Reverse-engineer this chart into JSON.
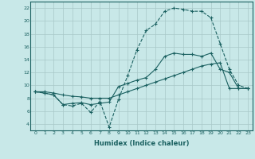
{
  "xlabel": "Humidex (Indice chaleur)",
  "xlim": [
    -0.5,
    23.5
  ],
  "ylim": [
    3,
    23
  ],
  "xticks": [
    0,
    1,
    2,
    3,
    4,
    5,
    6,
    7,
    8,
    9,
    10,
    11,
    12,
    13,
    14,
    15,
    16,
    17,
    18,
    19,
    20,
    21,
    22,
    23
  ],
  "yticks": [
    4,
    6,
    8,
    10,
    12,
    14,
    16,
    18,
    20,
    22
  ],
  "bg_color": "#c8e8e8",
  "line_color": "#1a6060",
  "grid_color": "#a8c8c8",
  "line1_x": [
    0,
    1,
    2,
    3,
    4,
    5,
    6,
    7,
    8,
    9,
    10,
    11,
    12,
    13,
    14,
    15,
    16,
    17,
    18,
    19,
    20,
    21,
    22,
    23
  ],
  "line1_y": [
    9,
    8.8,
    8.5,
    7.0,
    6.8,
    7.2,
    5.8,
    7.5,
    3.5,
    7.8,
    11.5,
    15.5,
    18.5,
    19.5,
    21.5,
    22,
    21.8,
    21.5,
    21.5,
    20.5,
    16.5,
    12.5,
    10,
    9.5
  ],
  "line2_x": [
    0,
    1,
    2,
    3,
    4,
    5,
    6,
    7,
    8,
    9,
    10,
    11,
    12,
    13,
    14,
    15,
    16,
    17,
    18,
    19,
    20,
    21,
    22,
    23
  ],
  "line2_y": [
    9,
    8.8,
    8.5,
    7.0,
    7.2,
    7.3,
    7.0,
    7.2,
    7.4,
    9.8,
    10.3,
    10.8,
    11.2,
    12.5,
    14.5,
    15,
    14.8,
    14.8,
    14.5,
    15.0,
    12.5,
    12.0,
    9.5,
    9.5
  ],
  "line3_x": [
    0,
    1,
    2,
    3,
    4,
    5,
    6,
    7,
    8,
    9,
    10,
    11,
    12,
    13,
    14,
    15,
    16,
    17,
    18,
    19,
    20,
    21,
    22,
    23
  ],
  "line3_y": [
    9,
    9,
    8.8,
    8.5,
    8.3,
    8.2,
    8.0,
    8.0,
    8.0,
    8.5,
    9.0,
    9.5,
    10.0,
    10.5,
    11.0,
    11.5,
    12.0,
    12.5,
    13.0,
    13.3,
    13.5,
    9.5,
    9.5,
    9.5
  ],
  "xlabel_fontsize": 6,
  "tick_fontsize": 4.5
}
